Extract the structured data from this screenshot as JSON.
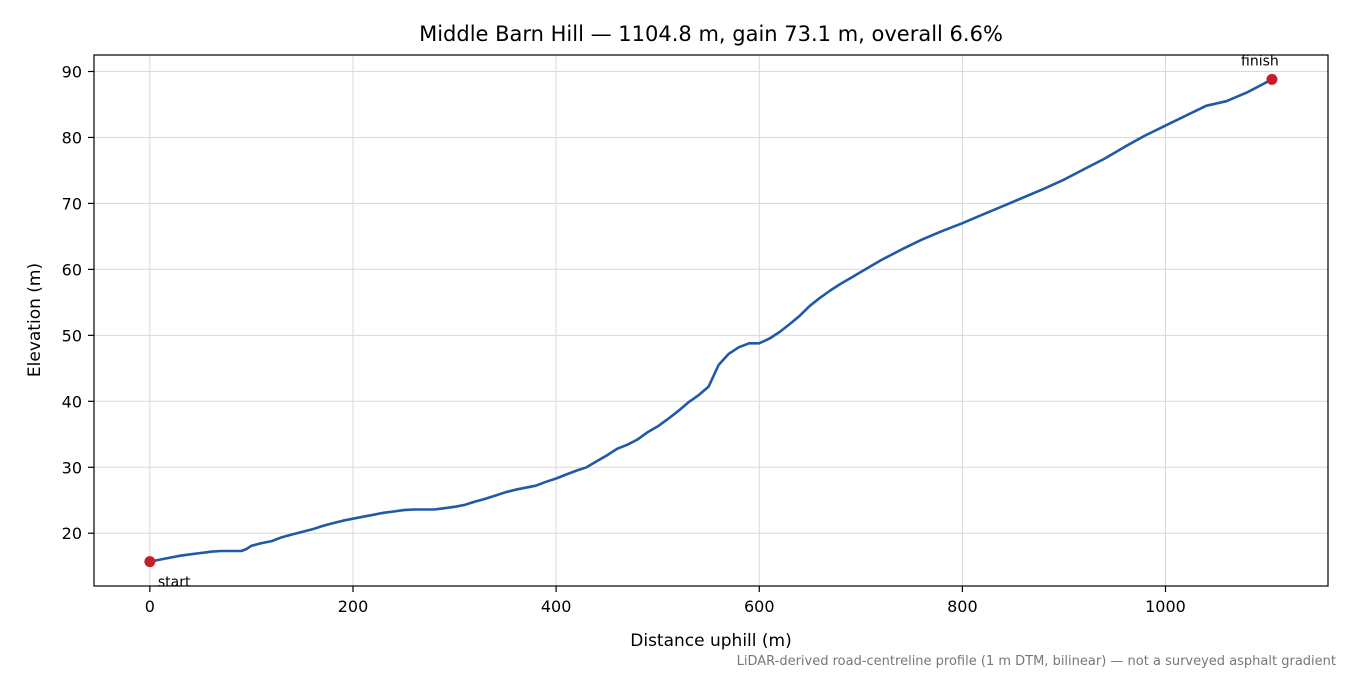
{
  "chart_data": {
    "type": "line",
    "title": "Middle Barn Hill — 1104.8 m, gain 73.1 m, overall 6.6%",
    "xlabel": "Distance uphill (m)",
    "ylabel": "Elevation (m)",
    "xlim": [
      -55,
      1160
    ],
    "ylim": [
      12,
      92.5
    ],
    "xticks": [
      0,
      200,
      400,
      600,
      800,
      1000
    ],
    "yticks": [
      20,
      30,
      40,
      50,
      60,
      70,
      80,
      90
    ],
    "grid": true,
    "line_color": "#1f5aa8",
    "marker_color": "#c21f2a",
    "series": [
      {
        "x": [
          0,
          10,
          20,
          30,
          40,
          50,
          55,
          60,
          70,
          80,
          90,
          95,
          100,
          110,
          120,
          130,
          140,
          150,
          160,
          170,
          180,
          190,
          200,
          210,
          220,
          230,
          240,
          250,
          260,
          270,
          280,
          290,
          300,
          310,
          320,
          330,
          340,
          350,
          360,
          370,
          380,
          390,
          400,
          410,
          420,
          430,
          440,
          450,
          460,
          470,
          480,
          490,
          500,
          510,
          520,
          530,
          540,
          550,
          560,
          570,
          580,
          590,
          600,
          610,
          620,
          630,
          640,
          650,
          660,
          670,
          680,
          690,
          700,
          720,
          740,
          760,
          780,
          800,
          820,
          840,
          860,
          880,
          900,
          920,
          940,
          960,
          980,
          1000,
          1020,
          1040,
          1060,
          1080,
          1104.8
        ],
        "y": [
          15.7,
          16.0,
          16.3,
          16.6,
          16.8,
          17.0,
          17.1,
          17.2,
          17.3,
          17.3,
          17.3,
          17.6,
          18.1,
          18.5,
          18.8,
          19.4,
          19.8,
          20.2,
          20.6,
          21.1,
          21.5,
          21.9,
          22.2,
          22.5,
          22.8,
          23.1,
          23.3,
          23.5,
          23.6,
          23.6,
          23.6,
          23.8,
          24.0,
          24.3,
          24.8,
          25.2,
          25.7,
          26.2,
          26.6,
          26.9,
          27.2,
          27.8,
          28.3,
          28.9,
          29.5,
          30.0,
          30.9,
          31.8,
          32.8,
          33.4,
          34.2,
          35.3,
          36.2,
          37.3,
          38.5,
          39.8,
          40.9,
          42.2,
          45.5,
          47.2,
          48.2,
          48.8,
          48.8,
          49.5,
          50.5,
          51.7,
          53.0,
          54.5,
          55.7,
          56.8,
          57.8,
          58.7,
          59.6,
          61.4,
          63.0,
          64.5,
          65.8,
          67.0,
          68.3,
          69.6,
          70.9,
          72.2,
          73.6,
          75.2,
          76.8,
          78.6,
          80.3,
          81.8,
          83.3,
          84.8,
          85.5,
          86.8,
          88.8
        ]
      }
    ],
    "annotations": [
      {
        "text": "start",
        "x": 0,
        "y": 15.7
      },
      {
        "text": "finish",
        "x": 1104.8,
        "y": 88.8
      }
    ],
    "footnote": "LiDAR-derived road-centreline profile (1 m DTM, bilinear) — not a surveyed asphalt gradient"
  }
}
